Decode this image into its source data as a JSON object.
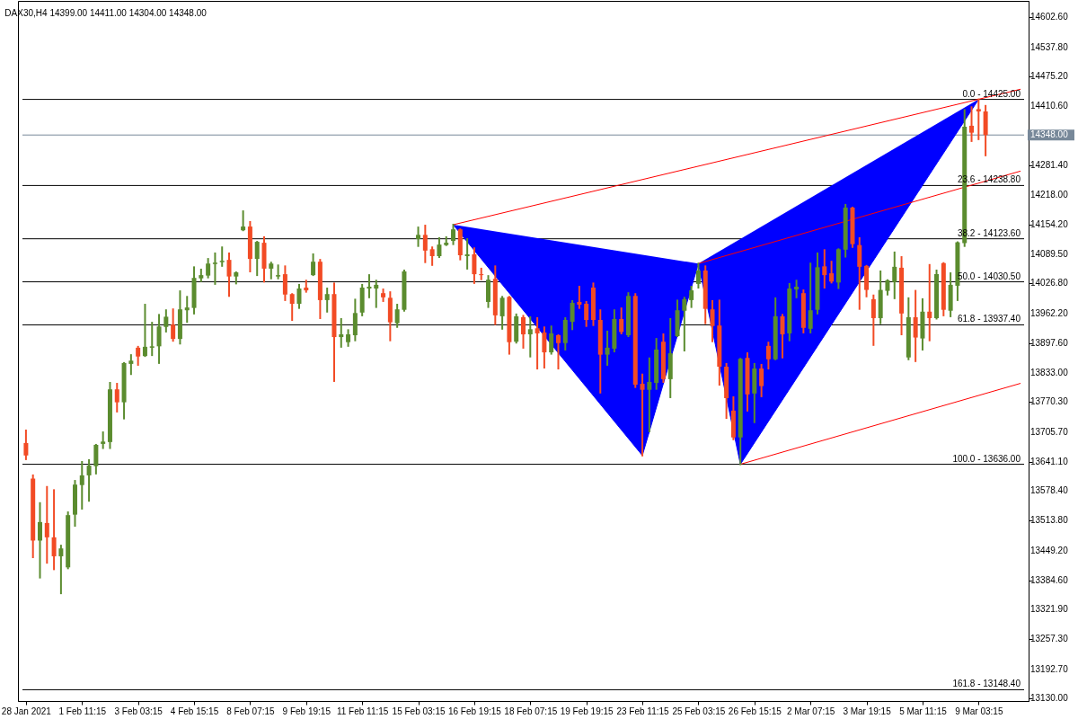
{
  "chart_data": {
    "type": "candlestick",
    "title": "DAX30,H4  14399.00 14411.00 14304.00 14348.00",
    "categories": [
      "28 Jan 2021",
      null,
      null,
      null,
      null,
      null,
      null,
      null,
      "1 Feb 11:15",
      null,
      null,
      null,
      null,
      null,
      null,
      null,
      "3 Feb 03:15",
      null,
      null,
      null,
      null,
      null,
      null,
      null,
      "4 Feb 15:15",
      null,
      null,
      null,
      null,
      null,
      null,
      null,
      "8 Feb 07:15",
      null,
      null,
      null,
      null,
      null,
      null,
      null,
      "9 Feb 19:15",
      null,
      null,
      null,
      null,
      null,
      null,
      null,
      "11 Feb 11:15",
      null,
      null,
      null,
      null,
      null,
      null,
      null,
      "15 Feb 03:15",
      null,
      null,
      null,
      null,
      null,
      null,
      null,
      "16 Feb 19:15",
      null,
      null,
      null,
      null,
      null,
      null,
      null,
      "18 Feb 07:15",
      null,
      null,
      null,
      null,
      null,
      null,
      null,
      "19 Feb 19:15",
      null,
      null,
      null,
      null,
      null,
      null,
      null,
      "23 Feb 11:15",
      null,
      null,
      null,
      null,
      null,
      null,
      null,
      "25 Feb 03:15",
      null,
      null,
      null,
      null,
      null,
      null,
      null,
      "26 Feb 15:15",
      null,
      null,
      null,
      null,
      null,
      null,
      null,
      "2 Mar 07:15",
      null,
      null,
      null,
      null,
      null,
      null,
      null,
      "3 Mar 19:15",
      null,
      null,
      null,
      null,
      null,
      null,
      null,
      "5 Mar 11:15",
      null,
      null,
      null,
      null,
      null,
      null,
      null,
      "9 Mar 03:15",
      null,
      null,
      null,
      null,
      null,
      null
    ],
    "ohlc": [
      [
        13682,
        13709,
        13647,
        13655
      ],
      [
        13605,
        13612,
        13435,
        13471
      ],
      [
        13471,
        13552,
        13391,
        13511
      ],
      [
        13509,
        13587,
        13423,
        13478
      ],
      [
        13478,
        13580,
        13409,
        13437
      ],
      [
        13437,
        13460,
        13357,
        13454
      ],
      [
        13413,
        13532,
        13411,
        13526
      ],
      [
        13527,
        13600,
        13503,
        13592
      ],
      [
        13591,
        13641,
        13540,
        13612
      ],
      [
        13612,
        13645,
        13557,
        13633
      ],
      [
        13632,
        13678,
        13616,
        13678
      ],
      [
        13680,
        13705,
        13671,
        13685
      ],
      [
        13684,
        13812,
        13671,
        13798
      ],
      [
        13798,
        13810,
        13750,
        13770
      ],
      [
        13770,
        13855,
        13735,
        13855
      ],
      [
        13853,
        13872,
        13831,
        13860
      ],
      [
        13888,
        13890,
        13851,
        13869
      ],
      [
        13870,
        13981,
        13870,
        13890
      ],
      [
        13888,
        13942,
        13872,
        13891
      ],
      [
        13891,
        13959,
        13855,
        13934
      ],
      [
        13933,
        13969,
        13923,
        13955
      ],
      [
        13938,
        13971,
        13903,
        13907
      ],
      [
        13907,
        14010,
        13897,
        13971
      ],
      [
        13969,
        13998,
        13944,
        13975
      ],
      [
        13974,
        14062,
        13962,
        14039
      ],
      [
        14038,
        14057,
        14032,
        14045
      ],
      [
        14044,
        14080,
        14040,
        14070
      ],
      [
        14069,
        14092,
        14026,
        14072
      ],
      [
        14073,
        14105,
        14065,
        14076
      ],
      [
        14078,
        14092,
        14000,
        14042
      ],
      [
        14042,
        14051,
        14027,
        14051
      ],
      [
        14142,
        14183,
        14142,
        14150
      ],
      [
        14150,
        14160,
        14053,
        14080
      ],
      [
        14080,
        14117,
        14045,
        14117
      ],
      [
        14115,
        14127,
        14031,
        14059
      ],
      [
        14059,
        14072,
        14038,
        14070
      ],
      [
        14042,
        14066,
        14038,
        14045
      ],
      [
        14047,
        14064,
        13991,
        14003
      ],
      [
        14004,
        14004,
        13948,
        13983
      ],
      [
        13983,
        14024,
        13974,
        14016
      ],
      [
        14018,
        14033,
        14009,
        14012
      ],
      [
        14045,
        14090,
        14045,
        14074
      ],
      [
        14074,
        14078,
        13952,
        13991
      ],
      [
        13991,
        14016,
        13966,
        14004
      ],
      [
        14004,
        14027,
        13816,
        13911
      ],
      [
        13911,
        13950,
        13890,
        13917
      ],
      [
        13900,
        13926,
        13892,
        13917
      ],
      [
        13915,
        13992,
        13904,
        13963
      ],
      [
        13964,
        14024,
        13958,
        14018
      ],
      [
        14016,
        14045,
        13997,
        14020
      ],
      [
        14016,
        14033,
        13976,
        14024
      ],
      [
        14006,
        14014,
        13989,
        13997
      ],
      [
        13996,
        14008,
        13904,
        13943
      ],
      [
        13941,
        13981,
        13933,
        13971
      ],
      [
        13970,
        14055,
        13968,
        14053
      ],
      null,
      [
        14123,
        14148,
        14108,
        14132
      ],
      [
        14132,
        14152,
        14073,
        14098
      ],
      [
        14101,
        14105,
        14067,
        14086
      ],
      [
        14086,
        14125,
        14084,
        14111
      ],
      [
        14110,
        14127,
        14110,
        14115
      ],
      [
        14119,
        14154,
        14112,
        14144
      ],
      [
        14144,
        14144,
        14079,
        14088
      ],
      [
        14086,
        14123,
        14059,
        14090
      ],
      [
        14090,
        14103,
        14028,
        14047
      ],
      [
        14047,
        14059,
        14036,
        14045
      ],
      [
        13987,
        14043,
        13976,
        14035
      ],
      [
        14037,
        14064,
        13939,
        13958
      ],
      [
        13956,
        13998,
        13929,
        13996
      ],
      [
        13998,
        13998,
        13875,
        13900
      ],
      [
        13901,
        13960,
        13899,
        13956
      ],
      [
        13954,
        13957,
        13888,
        13917
      ],
      [
        13917,
        13954,
        13869,
        13928
      ],
      [
        13930,
        13952,
        13843,
        13919
      ],
      [
        13921,
        13932,
        13845,
        13878
      ],
      [
        13878,
        13934,
        13875,
        13919
      ],
      [
        13915,
        13915,
        13843,
        13898
      ],
      [
        13898,
        13952,
        13884,
        13948
      ],
      [
        13944,
        13989,
        13928,
        13985
      ],
      [
        13987,
        14020,
        13974,
        13981
      ],
      [
        13983,
        13987,
        13935,
        13948
      ],
      [
        14018,
        14027,
        13937,
        13948
      ],
      [
        13948,
        13969,
        13791,
        13873
      ],
      [
        13873,
        13923,
        13851,
        13888
      ],
      [
        13886,
        13969,
        13880,
        13950
      ],
      [
        13950,
        13973,
        13919,
        13922
      ],
      [
        13915,
        14006,
        13913,
        14000
      ],
      [
        14000,
        14004,
        13803,
        13808
      ],
      [
        13810,
        13830,
        13655,
        13797
      ],
      [
        13797,
        13865,
        13707,
        13814
      ],
      [
        13812,
        13907,
        13799,
        13884
      ],
      [
        13901,
        13917,
        13814,
        13820
      ],
      [
        13820,
        13950,
        13781,
        13876
      ],
      [
        13913,
        13990,
        13913,
        13969
      ],
      [
        13968,
        13996,
        13882,
        13993
      ],
      [
        13991,
        14020,
        13976,
        14012
      ],
      [
        14026,
        14070,
        14018,
        14055
      ],
      [
        14055,
        14064,
        13941,
        13972
      ],
      [
        13971,
        13989,
        13902,
        13935
      ],
      [
        13936,
        13990,
        13808,
        13847
      ],
      [
        13847,
        13853,
        13736,
        13779
      ],
      [
        13752,
        13781,
        13690,
        13694
      ],
      [
        13694,
        13864,
        13636,
        13864
      ],
      [
        13866,
        13876,
        13752,
        13787
      ],
      [
        13789,
        13853,
        13727,
        13843
      ],
      [
        13843,
        13851,
        13783,
        13805
      ],
      [
        13892,
        13899,
        13843,
        13863
      ],
      [
        13863,
        13995,
        13863,
        13956
      ],
      [
        13956,
        13959,
        13867,
        13917
      ],
      [
        13919,
        14026,
        13904,
        14016
      ],
      [
        14014,
        14033,
        13997,
        14020
      ],
      [
        14006,
        14012,
        13921,
        13931
      ],
      [
        13929,
        14070,
        13921,
        13969
      ],
      [
        13970,
        14092,
        13962,
        14062
      ],
      [
        14064,
        14099,
        14018,
        14045
      ],
      [
        14049,
        14074,
        14029,
        14031
      ],
      [
        14029,
        14101,
        14017,
        14101
      ],
      [
        14100,
        14197,
        14085,
        14191
      ],
      [
        14191,
        14191,
        14106,
        14112
      ],
      [
        14110,
        14125,
        13972,
        14063
      ],
      [
        14065,
        14065,
        13999,
        14013
      ],
      [
        13993,
        14001,
        13894,
        13952
      ],
      [
        13952,
        14053,
        13941,
        14013
      ],
      [
        14011,
        14034,
        14003,
        14034
      ],
      [
        14030,
        14094,
        13995,
        14063
      ],
      [
        14061,
        14084,
        13917,
        13962
      ],
      [
        13867,
        13995,
        13863,
        13954
      ],
      [
        13954,
        14011,
        13859,
        13910
      ],
      [
        13908,
        13993,
        13884,
        13966
      ],
      [
        13966,
        14067,
        13904,
        13952
      ],
      [
        13952,
        14055,
        13951,
        14047
      ],
      [
        14071,
        14071,
        13958,
        13970
      ],
      [
        13968,
        14049,
        13956,
        14024
      ],
      [
        14022,
        14116,
        13991,
        14116
      ],
      [
        14114,
        14402,
        14108,
        14366
      ],
      [
        14368,
        14408,
        14335,
        14353
      ],
      [
        14404,
        14425,
        14339,
        14399
      ],
      [
        14399,
        14411,
        14304,
        14348
      ],
      null,
      null,
      null,
      null,
      null
    ],
    "colors": [
      "#f24b25",
      "#f24b25",
      "#5b8c2f",
      "#f24b25",
      "#f24b25",
      "#5b8c2f",
      "#5b8c2f",
      "#5b8c2f",
      "#5b8c2f",
      "#5b8c2f",
      "#5b8c2f",
      "#5b8c2f",
      "#5b8c2f",
      "#f24b25",
      "#5b8c2f",
      "#5b8c2f",
      "#f24b25",
      "#5b8c2f",
      "#5b8c2f",
      "#5b8c2f",
      "#5b8c2f",
      "#f24b25",
      "#5b8c2f",
      "#5b8c2f",
      "#5b8c2f",
      "#5b8c2f",
      "#5b8c2f",
      "#5b8c2f",
      "#5b8c2f",
      "#f24b25",
      "#5b8c2f",
      "#5b8c2f",
      "#f24b25",
      "#5b8c2f",
      "#f24b25",
      "#5b8c2f",
      "#5b8c2f",
      "#f24b25",
      "#f24b25",
      "#5b8c2f",
      "#f24b25",
      "#5b8c2f",
      "#f24b25",
      "#5b8c2f",
      "#f24b25",
      "#5b8c2f",
      "#5b8c2f",
      "#5b8c2f",
      "#5b8c2f",
      "#5b8c2f",
      "#5b8c2f",
      "#f24b25",
      "#f24b25",
      "#5b8c2f",
      "#5b8c2f",
      null,
      "#5b8c2f",
      "#f24b25",
      "#f24b25",
      "#5b8c2f",
      "#5b8c2f",
      "#5b8c2f",
      "#f24b25",
      "#5b8c2f",
      "#f24b25",
      "#f24b25",
      "#5b8c2f",
      "#f24b25",
      "#5b8c2f",
      "#f24b25",
      "#5b8c2f",
      "#f24b25",
      "#5b8c2f",
      "#f24b25",
      "#f24b25",
      "#5b8c2f",
      "#f24b25",
      "#5b8c2f",
      "#5b8c2f",
      "#f24b25",
      "#f24b25",
      "#f24b25",
      "#f24b25",
      "#5b8c2f",
      "#5b8c2f",
      "#f24b25",
      "#5b8c2f",
      "#f24b25",
      "#f24b25",
      "#5b8c2f",
      "#5b8c2f",
      "#f24b25",
      "#5b8c2f",
      "#5b8c2f",
      "#5b8c2f",
      "#5b8c2f",
      "#5b8c2f",
      "#f24b25",
      "#f24b25",
      "#f24b25",
      "#f24b25",
      "#f24b25",
      "#5b8c2f",
      "#f24b25",
      "#5b8c2f",
      "#f24b25",
      "#f24b25",
      "#5b8c2f",
      "#f24b25",
      "#5b8c2f",
      "#5b8c2f",
      "#f24b25",
      "#5b8c2f",
      "#5b8c2f",
      "#f24b25",
      "#f24b25",
      "#5b8c2f",
      "#5b8c2f",
      "#f24b25",
      "#f24b25",
      "#f24b25",
      "#f24b25",
      "#5b8c2f",
      "#5b8c2f",
      "#5b8c2f",
      "#f24b25",
      "#5b8c2f",
      "#f24b25",
      "#5b8c2f",
      "#f24b25",
      "#5b8c2f",
      "#f24b25",
      "#5b8c2f",
      "#5b8c2f",
      "#5b8c2f",
      "#f24b25",
      "#f24b25",
      "#f24b25",
      null,
      null,
      null,
      null,
      null
    ],
    "series": [
      {
        "type": "area",
        "color": "#0000ff",
        "values": [
          null,
          null,
          null,
          null,
          null,
          null,
          null,
          null,
          null,
          null,
          null,
          null,
          null,
          null,
          null,
          null,
          null,
          null,
          null,
          null,
          null,
          null,
          null,
          null,
          null,
          null,
          null,
          null,
          null,
          null,
          null,
          null,
          null,
          null,
          null,
          null,
          null,
          null,
          null,
          null,
          null,
          null,
          null,
          null,
          null,
          null,
          null,
          null,
          null,
          null,
          null,
          null,
          null,
          null,
          null,
          null,
          null,
          null,
          null,
          null,
          null,
          14154,
          null,
          null,
          null,
          null,
          null,
          null,
          null,
          null,
          null,
          null,
          null,
          null,
          null,
          null,
          null,
          null,
          null,
          null,
          null,
          null,
          null,
          null,
          null,
          null,
          null,
          null,
          13655,
          null,
          null,
          null,
          null,
          null,
          null,
          null,
          14070,
          null,
          null,
          null,
          null,
          null,
          null,
          null,
          null,
          null,
          null,
          null,
          null,
          null,
          null,
          null,
          null,
          null,
          null,
          null,
          null,
          null,
          null,
          null,
          null,
          null,
          null,
          null,
          null,
          null,
          null,
          null,
          null,
          null,
          null,
          null,
          null,
          null,
          null,
          null,
          null,
          null,
          null,
          null,
          null,
          null,
          null
        ]
      },
      {
        "type": "area",
        "color": "#0000ff",
        "values": [
          null,
          null,
          null,
          null,
          null,
          null,
          null,
          null,
          null,
          null,
          null,
          null,
          null,
          null,
          null,
          null,
          null,
          null,
          null,
          null,
          null,
          null,
          null,
          null,
          null,
          null,
          null,
          null,
          null,
          null,
          null,
          null,
          null,
          null,
          null,
          null,
          null,
          null,
          null,
          null,
          null,
          null,
          null,
          null,
          null,
          null,
          null,
          null,
          null,
          null,
          null,
          null,
          null,
          null,
          null,
          null,
          null,
          null,
          null,
          null,
          null,
          null,
          null,
          null,
          null,
          null,
          null,
          null,
          null,
          null,
          null,
          null,
          null,
          null,
          null,
          null,
          null,
          null,
          null,
          null,
          null,
          null,
          null,
          null,
          null,
          null,
          null,
          null,
          null,
          null,
          null,
          null,
          null,
          null,
          null,
          null,
          14070,
          null,
          null,
          null,
          null,
          null,
          13636,
          null,
          null,
          null,
          null,
          null,
          null,
          null,
          null,
          null,
          null,
          null,
          null,
          null,
          null,
          null,
          null,
          null,
          null,
          null,
          null,
          null,
          null,
          null,
          null,
          null,
          null,
          null,
          null,
          null,
          null,
          null,
          null,
          null,
          14425,
          null,
          null,
          null,
          null,
          null,
          null
        ]
      },
      {
        "type": "line",
        "color": "#ff0000",
        "values": [
          null,
          null,
          null,
          null,
          null,
          null,
          null,
          null,
          null,
          null,
          null,
          null,
          null,
          null,
          null,
          null,
          null,
          null,
          null,
          null,
          null,
          null,
          null,
          null,
          null,
          null,
          null,
          null,
          null,
          null,
          null,
          null,
          null,
          null,
          null,
          null,
          null,
          null,
          null,
          null,
          null,
          null,
          null,
          null,
          null,
          null,
          null,
          null,
          null,
          null,
          null,
          null,
          null,
          null,
          null,
          null,
          null,
          null,
          null,
          null,
          null,
          14154,
          null,
          null,
          null,
          null,
          null,
          null,
          null,
          null,
          null,
          null,
          null,
          null,
          null,
          null,
          null,
          null,
          null,
          null,
          null,
          null,
          null,
          null,
          null,
          null,
          null,
          null,
          null,
          null,
          null,
          null,
          null,
          null,
          null,
          null,
          null,
          null,
          null,
          null,
          null,
          null,
          null,
          null,
          null,
          null,
          null,
          null,
          null,
          null,
          null,
          null,
          null,
          null,
          null,
          null,
          null,
          null,
          null,
          null,
          null,
          null,
          null,
          null,
          null,
          null,
          null,
          null,
          null,
          null,
          null,
          null,
          null,
          null,
          null,
          null,
          null,
          null,
          null,
          null,
          null,
          null,
          14447
        ]
      },
      {
        "type": "line",
        "color": "#ff0000",
        "values": [
          null,
          null,
          null,
          null,
          null,
          null,
          null,
          null,
          null,
          null,
          null,
          null,
          null,
          null,
          null,
          null,
          null,
          null,
          null,
          null,
          null,
          null,
          null,
          null,
          null,
          null,
          null,
          null,
          null,
          null,
          null,
          null,
          null,
          null,
          null,
          null,
          null,
          null,
          null,
          null,
          null,
          null,
          null,
          null,
          null,
          null,
          null,
          null,
          null,
          null,
          null,
          null,
          null,
          null,
          null,
          null,
          null,
          null,
          null,
          null,
          null,
          null,
          null,
          null,
          null,
          null,
          null,
          null,
          null,
          null,
          null,
          null,
          null,
          null,
          null,
          null,
          null,
          null,
          null,
          null,
          null,
          null,
          null,
          null,
          null,
          null,
          null,
          null,
          null,
          null,
          null,
          null,
          null,
          null,
          null,
          null,
          14070,
          null,
          null,
          null,
          null,
          null,
          null,
          null,
          null,
          null,
          null,
          null,
          null,
          null,
          null,
          null,
          null,
          null,
          null,
          null,
          null,
          null,
          null,
          null,
          null,
          null,
          null,
          null,
          null,
          null,
          null,
          null,
          null,
          null,
          null,
          null,
          null,
          null,
          null,
          null,
          null,
          null,
          null,
          null,
          null,
          null,
          14270
        ]
      },
      {
        "type": "line",
        "color": "#ff0000",
        "values": [
          null,
          null,
          null,
          null,
          null,
          null,
          null,
          null,
          null,
          null,
          null,
          null,
          null,
          null,
          null,
          null,
          null,
          null,
          null,
          null,
          null,
          null,
          null,
          null,
          null,
          null,
          null,
          null,
          null,
          null,
          null,
          null,
          null,
          null,
          null,
          null,
          null,
          null,
          null,
          null,
          null,
          null,
          null,
          null,
          null,
          null,
          null,
          null,
          null,
          null,
          null,
          null,
          null,
          null,
          null,
          null,
          null,
          null,
          null,
          null,
          null,
          null,
          null,
          null,
          null,
          null,
          null,
          null,
          null,
          null,
          null,
          null,
          null,
          null,
          null,
          null,
          null,
          null,
          null,
          null,
          null,
          null,
          null,
          null,
          null,
          null,
          null,
          null,
          null,
          null,
          null,
          null,
          null,
          null,
          null,
          null,
          null,
          null,
          null,
          null,
          null,
          null,
          13636,
          null,
          null,
          null,
          null,
          null,
          null,
          null,
          null,
          null,
          null,
          null,
          null,
          null,
          null,
          null,
          null,
          null,
          null,
          null,
          null,
          null,
          null,
          null,
          null,
          null,
          null,
          null,
          null,
          null,
          null,
          null,
          null,
          null,
          null,
          null,
          null,
          null,
          null,
          null,
          13811
        ]
      }
    ],
    "ylim": [
      13124,
      14638
    ],
    "yticks": [
      {
        "value": 14602.6,
        "label": "14602.60"
      },
      {
        "value": 14537.8,
        "label": "14537.80"
      },
      {
        "value": 14475.2,
        "label": "14475.20"
      },
      {
        "value": 14410.6,
        "label": "14410.60"
      },
      {
        "value": 14281.4,
        "label": "14281.40"
      },
      {
        "value": 14218,
        "label": "14218.00"
      },
      {
        "value": 14154.2,
        "label": "14154.20"
      },
      {
        "value": 14089.5,
        "label": "14089.50"
      },
      {
        "value": 14026.8,
        "label": "14026.80"
      },
      {
        "value": 13962.2,
        "label": "13962.20"
      },
      {
        "value": 13897.6,
        "label": "13897.60"
      },
      {
        "value": 13833,
        "label": "13833.00"
      },
      {
        "value": 13770.3,
        "label": "13770.30"
      },
      {
        "value": 13705.7,
        "label": "13705.70"
      },
      {
        "value": 13641.1,
        "label": "13641.10"
      },
      {
        "value": 13578.4,
        "label": "13578.40"
      },
      {
        "value": 13513.8,
        "label": "13513.80"
      },
      {
        "value": 13449.2,
        "label": "13449.20"
      },
      {
        "value": 13384.6,
        "label": "13384.60"
      },
      {
        "value": 13321.9,
        "label": "13321.90"
      },
      {
        "value": 13257.3,
        "label": "13257.30"
      },
      {
        "value": 13192.7,
        "label": "13192.70"
      },
      {
        "value": 13130,
        "label": "13130.00"
      }
    ],
    "annotations": [
      {
        "text": "0.0 - 14425.00",
        "y": 14425
      },
      {
        "text": "23.6 - 14238.80",
        "y": 14238.8
      },
      {
        "text": "38.2 - 14123.60",
        "y": 14123.6
      },
      {
        "text": "50.0 - 14030.50",
        "y": 14030.5
      },
      {
        "text": "61.8 - 13937.40",
        "y": 13937.4
      },
      {
        "text": "100.0 - 13636.00",
        "y": 13636
      },
      {
        "text": "161.8 - 13148.40",
        "y": 13148.4
      }
    ],
    "ref_lines": [
      {
        "axis": "y",
        "value": 14425,
        "color": "#000000"
      },
      {
        "axis": "y",
        "value": 14238.8,
        "color": "#000000"
      },
      {
        "axis": "y",
        "value": 14123.6,
        "color": "#000000"
      },
      {
        "axis": "y",
        "value": 14030.5,
        "color": "#000000"
      },
      {
        "axis": "y",
        "value": 13937.4,
        "color": "#000000"
      },
      {
        "axis": "y",
        "value": 13636,
        "color": "#000000"
      },
      {
        "axis": "y",
        "value": 13148.4,
        "color": "#000000"
      },
      {
        "axis": "y",
        "value": 14348,
        "label": "14348.00",
        "color": "#778899"
      }
    ]
  }
}
